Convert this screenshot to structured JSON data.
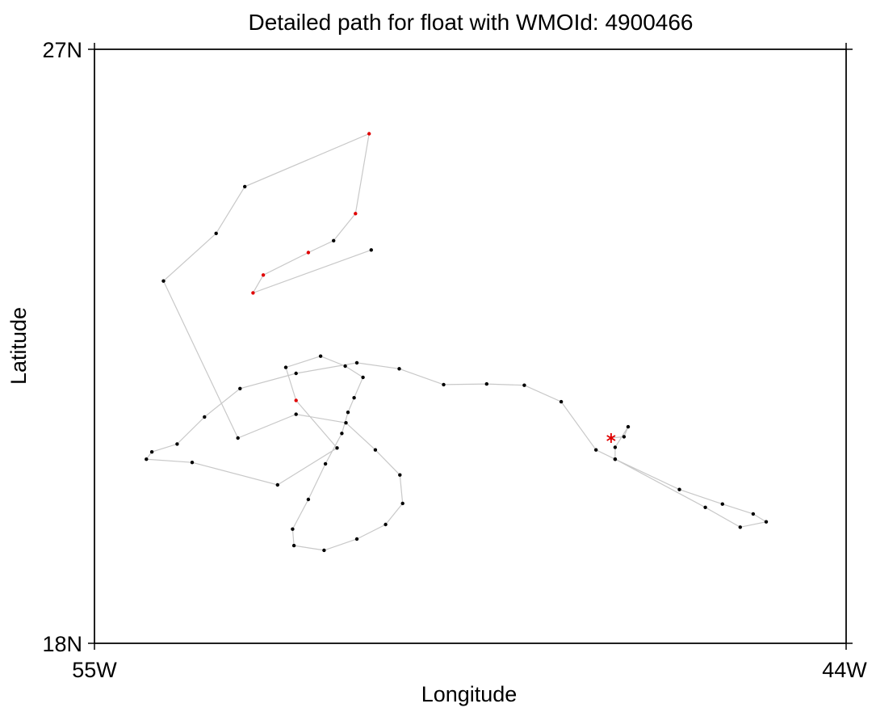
{
  "chart_data": {
    "type": "scatter",
    "title": "Detailed path for float with WMOId: 4900466",
    "xlabel": "Longitude",
    "ylabel": "Latitude",
    "xlim": [
      -55,
      -44
    ],
    "ylim": [
      18,
      27
    ],
    "x_ticks": [
      {
        "value": -55,
        "label": "55W"
      },
      {
        "value": -44,
        "label": "44W"
      }
    ],
    "y_ticks": [
      {
        "value": 18,
        "label": "18N"
      },
      {
        "value": 27,
        "label": "27N"
      }
    ],
    "grid": false,
    "colors": {
      "path": "#c8c8c8",
      "point": "#000000",
      "highlight": "#e00000"
    },
    "start_marker": {
      "x": -47.44,
      "y": 21.11,
      "symbol": "asterisk",
      "color": "#e00000"
    },
    "path": [
      {
        "x": -47.44,
        "y": 21.11,
        "flag": true
      },
      {
        "x": -47.25,
        "y": 21.13
      },
      {
        "x": -47.19,
        "y": 21.28
      },
      {
        "x": -47.38,
        "y": 20.97
      },
      {
        "x": -47.38,
        "y": 20.79
      },
      {
        "x": -46.44,
        "y": 20.33
      },
      {
        "x": -45.81,
        "y": 20.11
      },
      {
        "x": -45.36,
        "y": 19.96
      },
      {
        "x": -45.17,
        "y": 19.84
      },
      {
        "x": -45.55,
        "y": 19.76
      },
      {
        "x": -46.06,
        "y": 20.06
      },
      {
        "x": -47.38,
        "y": 20.79
      },
      {
        "x": -47.66,
        "y": 20.93
      },
      {
        "x": -48.17,
        "y": 21.66
      },
      {
        "x": -48.71,
        "y": 21.91
      },
      {
        "x": -49.26,
        "y": 21.93
      },
      {
        "x": -49.89,
        "y": 21.92
      },
      {
        "x": -50.54,
        "y": 22.16
      },
      {
        "x": -51.16,
        "y": 22.25
      },
      {
        "x": -52.05,
        "y": 22.09
      },
      {
        "x": -52.87,
        "y": 21.86
      },
      {
        "x": -53.39,
        "y": 21.43
      },
      {
        "x": -53.79,
        "y": 21.02
      },
      {
        "x": -54.16,
        "y": 20.9
      },
      {
        "x": -54.24,
        "y": 20.79
      },
      {
        "x": -53.57,
        "y": 20.74
      },
      {
        "x": -52.32,
        "y": 20.4
      },
      {
        "x": -51.45,
        "y": 20.96
      },
      {
        "x": -52.05,
        "y": 21.68,
        "flag": true
      },
      {
        "x": -52.2,
        "y": 22.18
      },
      {
        "x": -51.69,
        "y": 22.35
      },
      {
        "x": -51.33,
        "y": 22.2
      },
      {
        "x": -51.07,
        "y": 22.03
      },
      {
        "x": -51.2,
        "y": 21.72
      },
      {
        "x": -51.29,
        "y": 21.5
      },
      {
        "x": -51.38,
        "y": 21.18
      },
      {
        "x": -51.62,
        "y": 20.72
      },
      {
        "x": -51.87,
        "y": 20.18
      },
      {
        "x": -52.1,
        "y": 19.73
      },
      {
        "x": -52.08,
        "y": 19.48
      },
      {
        "x": -51.64,
        "y": 19.41
      },
      {
        "x": -51.16,
        "y": 19.58
      },
      {
        "x": -50.74,
        "y": 19.8
      },
      {
        "x": -50.49,
        "y": 20.12
      },
      {
        "x": -50.53,
        "y": 20.55
      },
      {
        "x": -50.89,
        "y": 20.93
      },
      {
        "x": -51.32,
        "y": 21.34
      },
      {
        "x": -52.05,
        "y": 21.47
      },
      {
        "x": -52.9,
        "y": 21.11
      },
      {
        "x": -53.99,
        "y": 23.49
      },
      {
        "x": -53.22,
        "y": 24.21
      },
      {
        "x": -52.8,
        "y": 24.92
      },
      {
        "x": -50.98,
        "y": 25.72,
        "flag": true
      },
      {
        "x": -51.18,
        "y": 24.51,
        "flag": true
      },
      {
        "x": -51.5,
        "y": 24.1
      },
      {
        "x": -51.87,
        "y": 23.92,
        "flag": true
      },
      {
        "x": -52.53,
        "y": 23.58,
        "flag": true
      },
      {
        "x": -52.68,
        "y": 23.31,
        "flag": true
      },
      {
        "x": -50.95,
        "y": 23.96
      }
    ]
  }
}
